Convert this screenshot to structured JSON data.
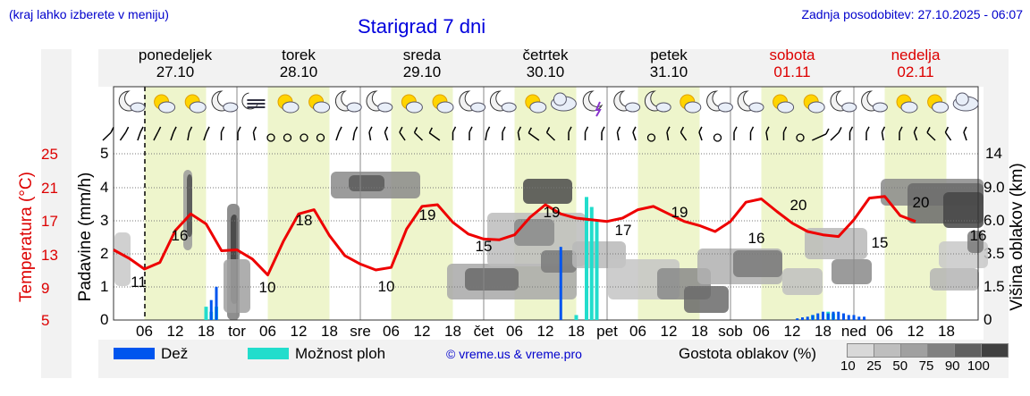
{
  "header": {
    "left_note": "(kraj lahko izberete v meniju)",
    "title": "Starigrad 7 dni",
    "updated": "Zadnja posodobitev: 27.10.2025 - 06:07"
  },
  "days": [
    {
      "name": "ponedeljek",
      "date": "27.10",
      "weekend": false
    },
    {
      "name": "torek",
      "date": "28.10",
      "weekend": false
    },
    {
      "name": "sreda",
      "date": "29.10",
      "weekend": false
    },
    {
      "name": "četrtek",
      "date": "30.10",
      "weekend": false
    },
    {
      "name": "petek",
      "date": "31.10",
      "weekend": false
    },
    {
      "name": "sobota",
      "date": "01.11",
      "weekend": true
    },
    {
      "name": "nedelja",
      "date": "02.11",
      "weekend": true
    }
  ],
  "axes": {
    "temp_label": "Temperatura (°C)",
    "temp_ticks": [
      "25",
      "21",
      "17",
      "13",
      "9",
      "5"
    ],
    "precip_label": "Padavine (mm/h)",
    "precip_ticks": [
      "5",
      "4",
      "3",
      "2",
      "1",
      "0"
    ],
    "cloud_label": "Višina oblakov (km)",
    "cloud_ticks": [
      "14",
      "9.0",
      "6.0",
      "3.5",
      "1.5",
      "0"
    ],
    "x_ticks": [
      "06",
      "12",
      "18",
      "tor",
      "06",
      "12",
      "18",
      "sre",
      "06",
      "12",
      "18",
      "čet",
      "06",
      "12",
      "18",
      "pet",
      "06",
      "12",
      "18",
      "sob",
      "06",
      "12",
      "18",
      "ned",
      "06",
      "12",
      "18"
    ]
  },
  "legend": {
    "rain": "Dež",
    "showers": "Možnost ploh",
    "credit": "© vreme.us & vreme.pro",
    "density_label": "Gostota oblakov (%)",
    "density_ticks": [
      "10",
      "25",
      "50",
      "75",
      "90",
      "100"
    ],
    "density_colors": [
      "#d8d8d8",
      "#bebebe",
      "#a0a0a0",
      "#808080",
      "#606060",
      "#404040"
    ]
  },
  "colors": {
    "temperature": "#ee0000",
    "rain": "#0055ee",
    "showers": "#22ddcc",
    "daylight": "#eef5cc",
    "weekend": "#dd0000"
  },
  "chart_data": {
    "type": "line",
    "title": "Starigrad 7 dni",
    "ylabel": "Temperatura (°C)",
    "ylim": [
      5,
      25
    ],
    "start": "2025-10-27 00:00",
    "step_hours": 3,
    "temperature_series": [
      {
        "name": "Temperatura (°C)",
        "unit": "°C",
        "values": [
          13.5,
          12.5,
          11.2,
          12.0,
          15.8,
          17.8,
          16.6,
          13.4,
          13.5,
          12.4,
          10.5,
          14.5,
          17.8,
          18.3,
          15.2,
          12.8,
          11.8,
          11.1,
          11.4,
          16.0,
          18.7,
          18.9,
          16.8,
          15.4,
          14.8,
          14.7,
          15.3,
          17.4,
          18.9,
          17.8,
          17.3,
          17.1,
          16.9,
          17.3,
          18.3,
          18.7,
          17.8,
          16.9,
          16.4,
          15.7,
          16.9,
          19.2,
          19.6,
          18.1,
          16.7,
          15.7,
          15.3,
          15.1,
          17.1,
          19.7,
          19.9,
          17.6,
          16.9
        ]
      }
    ],
    "temperature_labels": [
      "11",
      "16",
      "10",
      "18",
      "10",
      "19",
      "15",
      "19",
      "17",
      "19",
      "16",
      "20",
      "15",
      "20",
      "16"
    ],
    "rain_mm_h": [
      {
        "hour": 19,
        "value": 0.6
      },
      {
        "hour": 20,
        "value": 1.0
      },
      {
        "hour": 87,
        "value": 2.2
      },
      {
        "hour": 133,
        "value": 0.05
      },
      {
        "hour": 134,
        "value": 0.08
      },
      {
        "hour": 135,
        "value": 0.1
      },
      {
        "hour": 136,
        "value": 0.15
      },
      {
        "hour": 137,
        "value": 0.2
      },
      {
        "hour": 138,
        "value": 0.25
      },
      {
        "hour": 139,
        "value": 0.2
      },
      {
        "hour": 140,
        "value": 0.25
      },
      {
        "hour": 141,
        "value": 0.25
      },
      {
        "hour": 142,
        "value": 0.2
      },
      {
        "hour": 143,
        "value": 0.15
      },
      {
        "hour": 144,
        "value": 0.15
      },
      {
        "hour": 145,
        "value": 0.1
      },
      {
        "hour": 146,
        "value": 0.1
      }
    ],
    "shower_mm_h": [
      {
        "hour": 18,
        "value": 0.4
      },
      {
        "hour": 19,
        "value": 0.25
      },
      {
        "hour": 20,
        "value": 0.4
      },
      {
        "hour": 90,
        "value": 0.15
      },
      {
        "hour": 92,
        "value": 3.7
      },
      {
        "hour": 93,
        "value": 3.4
      },
      {
        "hour": 94,
        "value": 3.0
      },
      {
        "hour": 136,
        "value": 0.15
      },
      {
        "hour": 139,
        "value": 0.25
      },
      {
        "hour": 140,
        "value": 0.2
      }
    ]
  }
}
